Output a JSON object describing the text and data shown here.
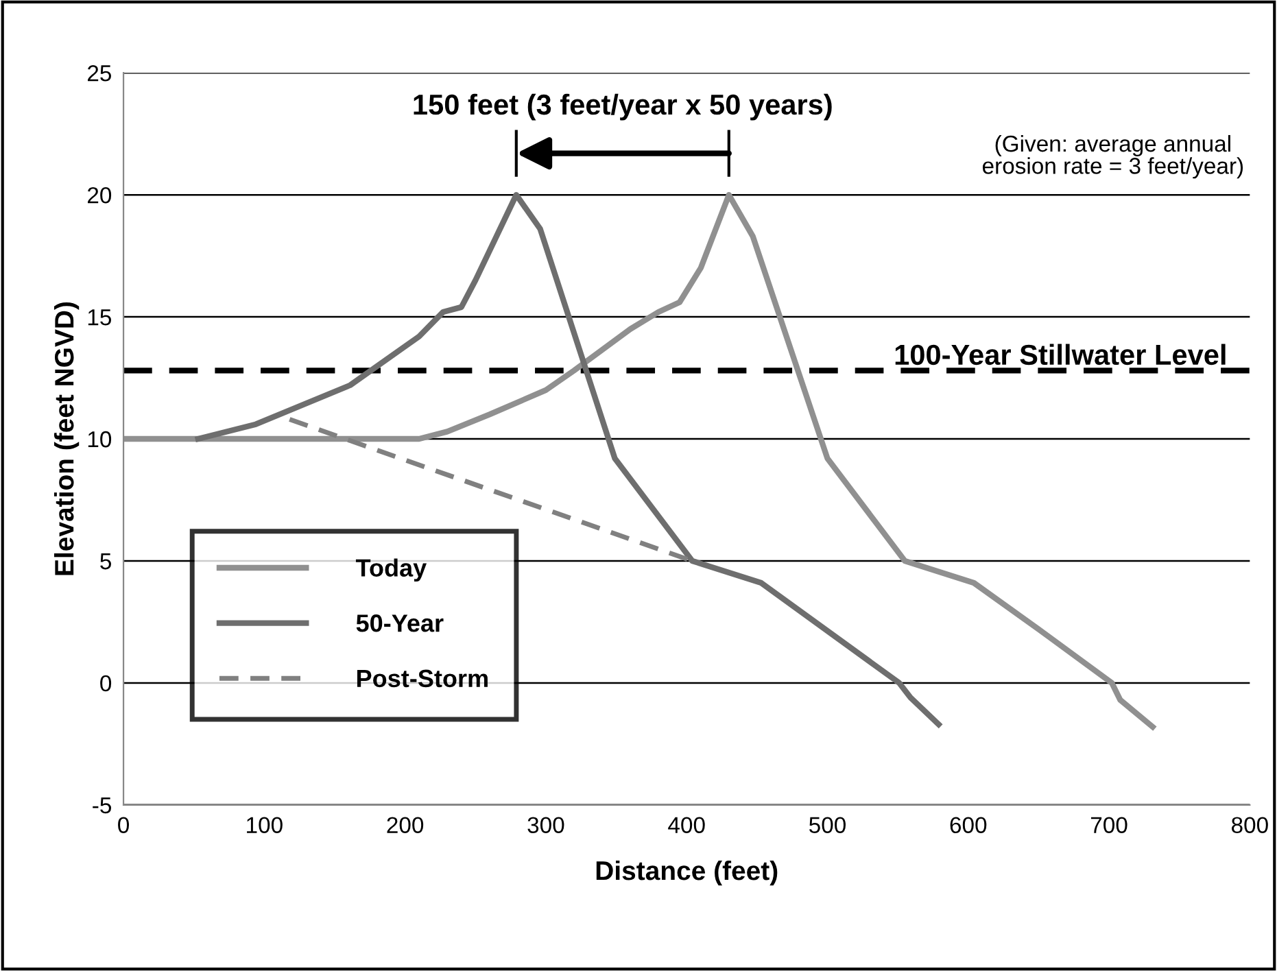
{
  "chart_data": {
    "type": "line",
    "xlabel": "Distance (feet)",
    "ylabel": "Elevation (feet NGVD)",
    "xlim": [
      0,
      800
    ],
    "xticks": [
      0,
      100,
      200,
      300,
      400,
      500,
      600,
      700,
      800
    ],
    "ylim": [
      -5,
      25
    ],
    "yticks": [
      -5,
      0,
      5,
      10,
      15,
      20,
      25
    ],
    "grid": "y",
    "legend": "bottom left",
    "series": [
      {
        "name": "Today",
        "color": "#909090",
        "line_style": "solid",
        "x": [
          0,
          210,
          230,
          260,
          300,
          320,
          360,
          380,
          395,
          410,
          430,
          447,
          500,
          555,
          604,
          650,
          702,
          708,
          731
        ],
        "values": [
          10,
          10,
          10.3,
          11,
          12,
          12.8,
          14.5,
          15.2,
          15.6,
          17,
          20,
          18.3,
          9.2,
          5,
          4.1,
          2.2,
          0,
          -0.7,
          -1.8
        ]
      },
      {
        "name": "50-Year",
        "color": "#6e6e6e",
        "line_style": "solid",
        "x": [
          53,
          94,
          161,
          210,
          227,
          240,
          250,
          279,
          296,
          349,
          404,
          453,
          551,
          559,
          579
        ],
        "values": [
          10,
          10.6,
          12.2,
          14.2,
          15.2,
          15.4,
          16.5,
          20,
          18.6,
          9.2,
          5,
          4.1,
          0,
          -0.6,
          -1.7
        ]
      },
      {
        "name": "Post-Storm",
        "color": "#808080",
        "line_style": "dashed",
        "x": [
          118,
          404
        ],
        "values": [
          10.8,
          5
        ]
      }
    ],
    "ref_lines": [
      {
        "axis": "y",
        "value": 12.8,
        "label": "100-Year Stillwater Level",
        "color": "#000000",
        "line_style": "dashed"
      }
    ],
    "annotations": [
      "150 feet (3 feet/year x 50 years)",
      "(Given: average annual\nerosion rate = 3 feet/year)"
    ]
  }
}
